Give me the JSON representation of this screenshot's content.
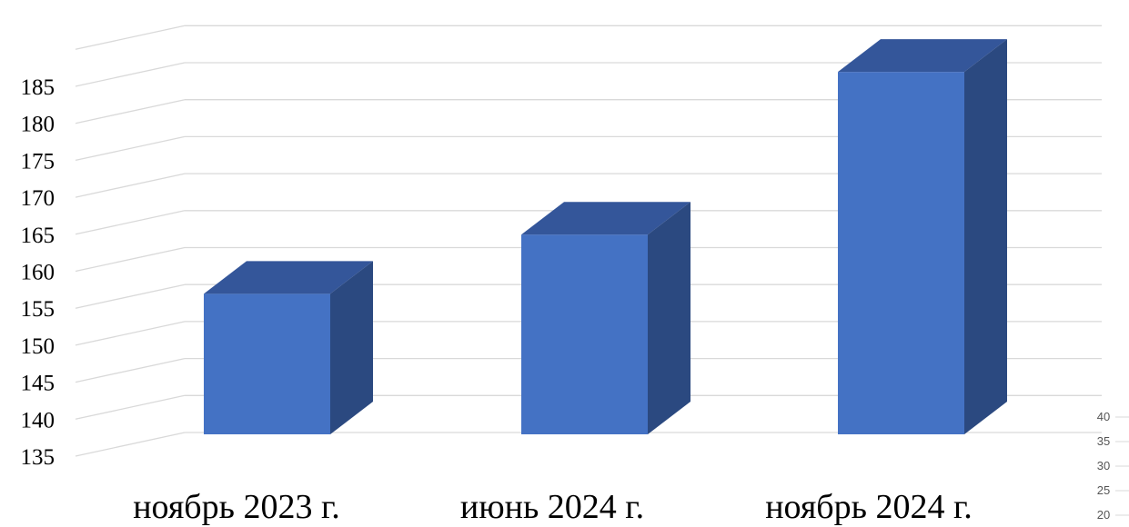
{
  "chart_data": [
    {
      "type": "bar",
      "style": "3d-column",
      "categories": [
        "ноябрь 2023 г.",
        "июнь 2024 г.",
        "ноябрь 2024 г."
      ],
      "values": [
        154,
        162,
        184
      ],
      "ylim": [
        135,
        185
      ],
      "y_ticks": [
        "135",
        "140",
        "145",
        "150",
        "155",
        "160",
        "165",
        "170",
        "175",
        "180",
        "185"
      ],
      "grid": true,
      "legend": "none",
      "colors": {
        "front": "#4472C4",
        "top": "#34569A",
        "side": "#2B4980",
        "grid": "#D9D9D9"
      }
    },
    {
      "type": "bar",
      "partial": true,
      "y_ticks": [
        "40",
        "35",
        "30",
        "25",
        "20"
      ]
    }
  ]
}
